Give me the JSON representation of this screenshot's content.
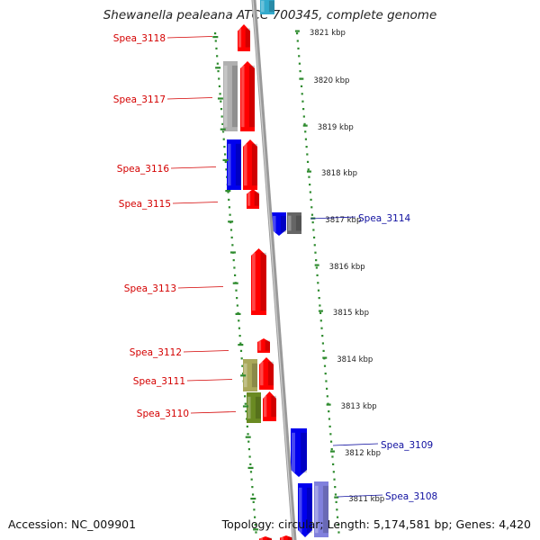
{
  "title": "Shewanella pealeana ATCC 700345, complete genome",
  "footer": {
    "accession": "Accession: NC_009901",
    "summary": "Topology: circular; Length: 5,174,581 bp; Genes: 4,420"
  },
  "colors": {
    "axis": "#888888",
    "tick_dots": "#2e8b2e",
    "left_labels": "#d40000",
    "right_labels": "#1010a0",
    "red": "#ff0000",
    "blue": "#0000ee",
    "gray": "#b0b0b0",
    "olive": "#aaa85a",
    "green": "#6a8a22",
    "lavender": "#8080dd",
    "teal": "#33aacc"
  },
  "scale_labels": [
    "3821 kbp",
    "3820 kbp",
    "3819 kbp",
    "3818 kbp",
    "3817 kbp",
    "3816 kbp",
    "3815 kbp",
    "3814 kbp",
    "3813 kbp",
    "3812 kbp",
    "3811 kbp"
  ],
  "genes_left": [
    "Spea_3118",
    "Spea_3117",
    "Spea_3116",
    "Spea_3115",
    "Spea_3113",
    "Spea_3112",
    "Spea_3111",
    "Spea_3110"
  ],
  "genes_right": [
    "Spea_3114",
    "Spea_3109",
    "Spea_3108"
  ]
}
